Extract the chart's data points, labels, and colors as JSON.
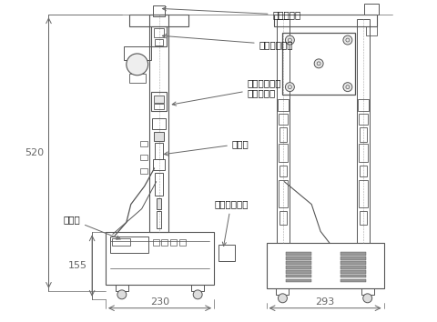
{
  "bg_color": "#ffffff",
  "line_color": "#555555",
  "dim_color": "#666666",
  "text_color": "#111111",
  "fig_width": 4.8,
  "fig_height": 3.54,
  "dpi": 100,
  "labels": {
    "air_damper": "エアダンパ",
    "handle": "上下ハンドル",
    "flexible": "フレキシブル\nジョイント",
    "sensor": "センサ",
    "display": "表示部",
    "switch": "操作スイッチ",
    "dim_520": "520",
    "dim_155": "155",
    "dim_230": "230",
    "dim_293": "293"
  }
}
